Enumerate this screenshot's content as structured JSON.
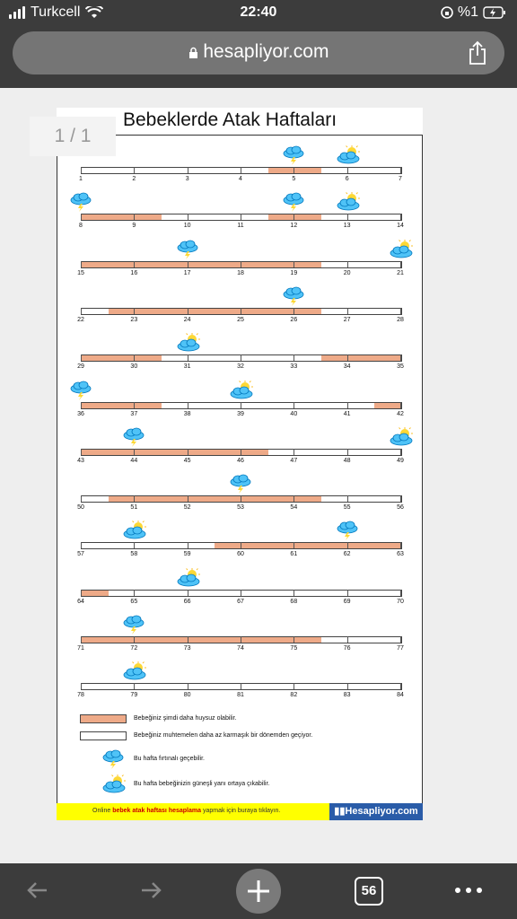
{
  "status": {
    "carrier": "Turkcell",
    "time": "22:40",
    "battery": "%1"
  },
  "browser": {
    "url": "hesapliyor.com",
    "page_indicator": "1 / 1",
    "tab_count": "56"
  },
  "document": {
    "title": "Bebeklerde Atak Haftaları",
    "days": [
      {
        "day": 1
      },
      {
        "day": 2
      },
      {
        "day": 3
      },
      {
        "day": 4
      },
      {
        "day": 5,
        "fussy": true,
        "icon": "storm"
      },
      {
        "day": 6,
        "icon": "sun"
      },
      {
        "day": 7
      },
      {
        "day": 8,
        "fussy": true,
        "icon": "storm"
      },
      {
        "day": 9,
        "fussy": true
      },
      {
        "day": 10
      },
      {
        "day": 11
      },
      {
        "day": 12,
        "fussy": true,
        "icon": "storm"
      },
      {
        "day": 13,
        "icon": "sun"
      },
      {
        "day": 14
      },
      {
        "day": 15,
        "fussy": true
      },
      {
        "day": 16,
        "fussy": true
      },
      {
        "day": 17,
        "fussy": true,
        "icon": "storm"
      },
      {
        "day": 18,
        "fussy": true
      },
      {
        "day": 19,
        "fussy": true
      },
      {
        "day": 20
      },
      {
        "day": 21,
        "icon": "sun"
      },
      {
        "day": 22
      },
      {
        "day": 23,
        "fussy": true
      },
      {
        "day": 24,
        "fussy": true
      },
      {
        "day": 25,
        "fussy": true
      },
      {
        "day": 26,
        "fussy": true,
        "icon": "storm"
      },
      {
        "day": 27
      },
      {
        "day": 28
      },
      {
        "day": 29,
        "fussy": true
      },
      {
        "day": 30,
        "fussy": true
      },
      {
        "day": 31,
        "icon": "sun"
      },
      {
        "day": 32
      },
      {
        "day": 33
      },
      {
        "day": 34,
        "fussy": true
      },
      {
        "day": 35,
        "fussy": true
      },
      {
        "day": 36,
        "fussy": true,
        "icon": "storm"
      },
      {
        "day": 37,
        "fussy": true
      },
      {
        "day": 38
      },
      {
        "day": 39,
        "icon": "sun"
      },
      {
        "day": 40
      },
      {
        "day": 41
      },
      {
        "day": 42,
        "fussy": true
      },
      {
        "day": 43,
        "fussy": true
      },
      {
        "day": 44,
        "fussy": true,
        "icon": "storm"
      },
      {
        "day": 45,
        "fussy": true
      },
      {
        "day": 46,
        "fussy": true
      },
      {
        "day": 47
      },
      {
        "day": 48
      },
      {
        "day": 49,
        "icon": "sun"
      },
      {
        "day": 50
      },
      {
        "day": 51,
        "fussy": true
      },
      {
        "day": 52,
        "fussy": true
      },
      {
        "day": 53,
        "fussy": true,
        "icon": "storm"
      },
      {
        "day": 54,
        "fussy": true
      },
      {
        "day": 55
      },
      {
        "day": 56
      },
      {
        "day": 57
      },
      {
        "day": 58,
        "icon": "sun"
      },
      {
        "day": 59
      },
      {
        "day": 60,
        "fussy": true
      },
      {
        "day": 61,
        "fussy": true
      },
      {
        "day": 62,
        "fussy": true,
        "icon": "storm"
      },
      {
        "day": 63,
        "fussy": true
      },
      {
        "day": 64,
        "fussy": true
      },
      {
        "day": 65
      },
      {
        "day": 66,
        "icon": "sun"
      },
      {
        "day": 67
      },
      {
        "day": 68
      },
      {
        "day": 69
      },
      {
        "day": 70
      },
      {
        "day": 71,
        "fussy": true
      },
      {
        "day": 72,
        "fussy": true,
        "icon": "storm"
      },
      {
        "day": 73,
        "fussy": true
      },
      {
        "day": 74,
        "fussy": true
      },
      {
        "day": 75,
        "fussy": true
      },
      {
        "day": 76
      },
      {
        "day": 77
      },
      {
        "day": 78
      },
      {
        "day": 79,
        "icon": "sun"
      },
      {
        "day": 80
      },
      {
        "day": 81
      },
      {
        "day": 82
      },
      {
        "day": 83
      },
      {
        "day": 84
      }
    ],
    "legend": {
      "fussy": "Bebeğiniz şimdi daha huysuz olabilir.",
      "calm": "Bebeğiniz muhtemelen daha az karmaşık bir dönemden geçiyor.",
      "storm": "Bu hafta fırtınalı geçebilir.",
      "sun": "Bu hafta bebeğinizin güneşli yanı ortaya çıkabilir."
    },
    "footer": {
      "prefix": "Online ",
      "link": "bebek atak haftası hesaplama",
      "suffix": " yapmak için buraya tıklayın.",
      "brand": "Hesapliyor.com"
    }
  },
  "colors": {
    "fussy": "#eeaa88",
    "calm": "#ffffff",
    "footer_bg": "#ffff00",
    "brand_bg": "#2a5ca8",
    "bar": "#3c3c3c"
  }
}
